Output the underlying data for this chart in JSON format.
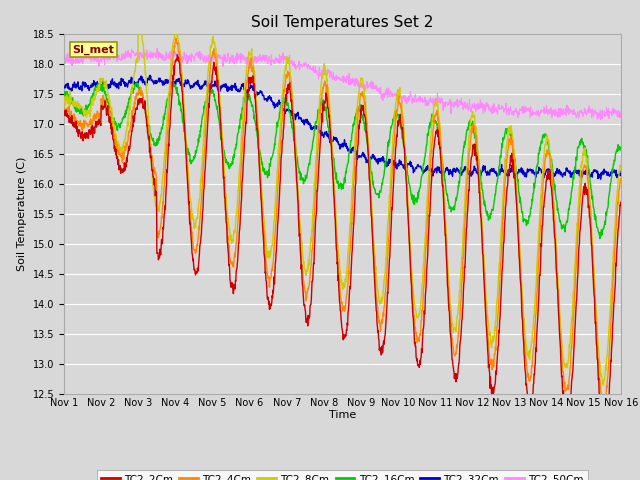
{
  "title": "Soil Temperatures Set 2",
  "xlabel": "Time",
  "ylabel": "Soil Temperature (C)",
  "ylim": [
    12.5,
    18.5
  ],
  "yticks": [
    12.5,
    13.0,
    13.5,
    14.0,
    14.5,
    15.0,
    15.5,
    16.0,
    16.5,
    17.0,
    17.5,
    18.0,
    18.5
  ],
  "series_colors": {
    "TC2_2Cm": "#cc0000",
    "TC2_4Cm": "#ff8800",
    "TC2_8Cm": "#cccc00",
    "TC2_16Cm": "#00cc00",
    "TC2_32Cm": "#0000cc",
    "TC2_50Cm": "#ff88ff"
  },
  "legend_label": "SI_met",
  "n_days": 15,
  "samples_per_day": 96,
  "background_color": "#d8d8d8",
  "plot_bg_color": "#d8d8d8",
  "grid_color": "#ffffff",
  "title_fontsize": 11,
  "axis_fontsize": 8,
  "tick_fontsize": 7
}
